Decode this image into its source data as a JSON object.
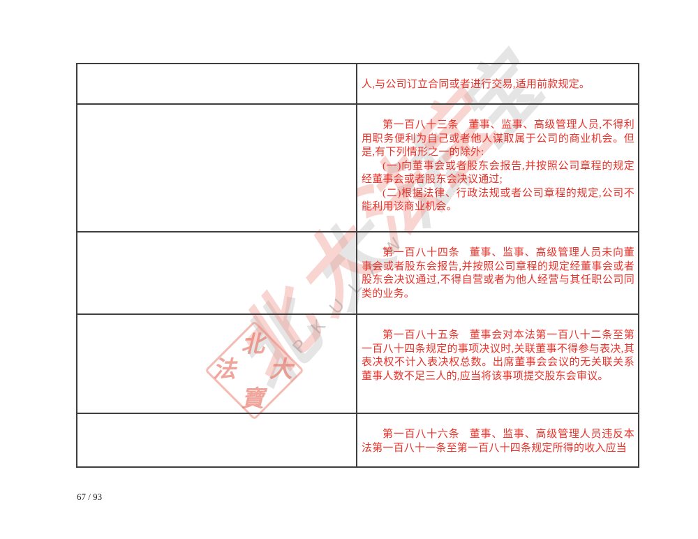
{
  "document": {
    "page_number": "67 / 93"
  },
  "colors": {
    "law_text_red": "#e8322a",
    "table_border": "#3e3e3e",
    "watermark_pink": "#f2a097",
    "watermark_gray": "#c7c7c7"
  },
  "watermark": {
    "calligraphy": "北大法宝",
    "latin": "PKULAW",
    "seal": {
      "top": "北",
      "left": "法",
      "right": "大",
      "bottom": "寶"
    }
  },
  "table": {
    "rows": [
      {
        "left": "",
        "paragraphs": [
          {
            "article": "",
            "text": "人,与公司订立合同或者进行交易,适用前款规定。"
          }
        ]
      },
      {
        "left": "",
        "paragraphs": [
          {
            "article": "第一百八十三条",
            "text": "董事、监事、高级管理人员,不得利用职务便利为自己或者他人谋取属于公司的商业机会。但是,有下列情形之一的除外:"
          },
          {
            "article": "",
            "text": "(一)向董事会或者股东会报告,并按照公司章程的规定经董事会或者股东会决议通过;"
          },
          {
            "article": "",
            "text": "(二)根据法律、行政法规或者公司章程的规定,公司不能利用该商业机会。"
          }
        ]
      },
      {
        "left": "",
        "paragraphs": [
          {
            "article": "第一百八十四条",
            "text": "董事、监事、高级管理人员未向董事会或者股东会报告,并按照公司章程的规定经董事会或者股东会决议通过,不得自营或者为他人经营与其任职公司同类的业务。"
          }
        ]
      },
      {
        "left": "",
        "paragraphs": [
          {
            "article": "第一百八十五条",
            "text": "董事会对本法第一百八十二条至第一百八十四条规定的事项决议时,关联董事不得参与表决,其表决权不计入表决权总数。出席董事会会议的无关联关系董事人数不足三人的,应当将该事项提交股东会审议。"
          }
        ]
      },
      {
        "left": "",
        "paragraphs": [
          {
            "article": "第一百八十六条",
            "text": "董事、监事、高级管理人员违反本法第一百八十一条至第一百八十四条规定所得的收入应当"
          }
        ]
      }
    ]
  }
}
